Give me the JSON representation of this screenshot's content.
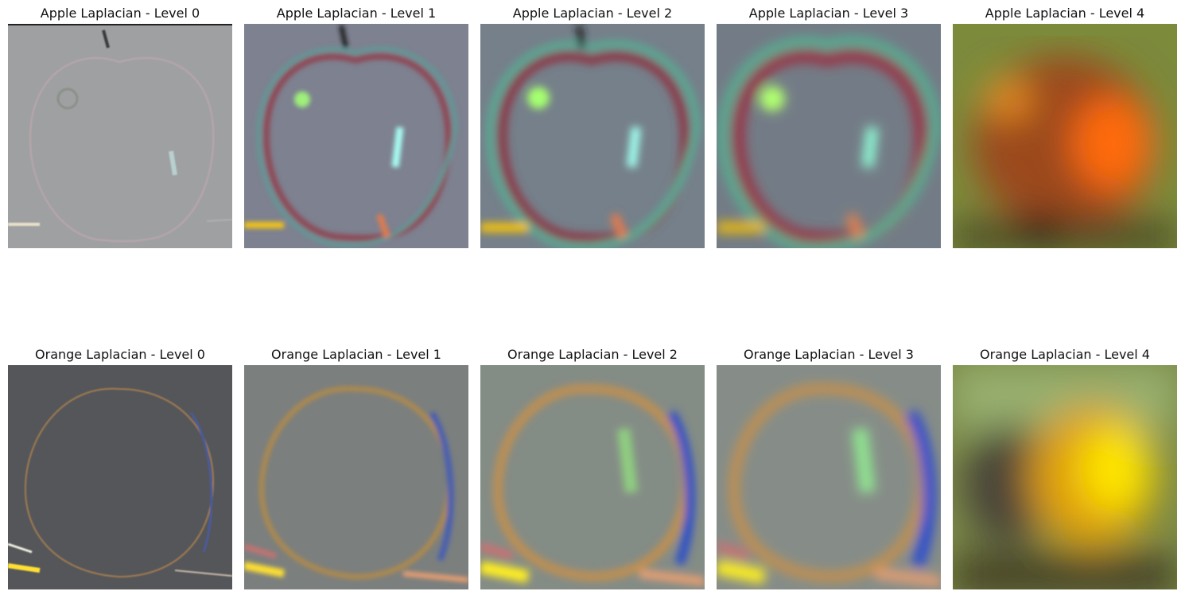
{
  "figure": {
    "panels": [
      {
        "id": "apple-0",
        "title": "Apple Laplacian - Level 0"
      },
      {
        "id": "apple-1",
        "title": "Apple Laplacian - Level 1"
      },
      {
        "id": "apple-2",
        "title": "Apple Laplacian - Level 2"
      },
      {
        "id": "apple-3",
        "title": "Apple Laplacian - Level 3"
      },
      {
        "id": "apple-4",
        "title": "Apple Laplacian - Level 4"
      },
      {
        "id": "orange-0",
        "title": "Orange Laplacian - Level 0"
      },
      {
        "id": "orange-1",
        "title": "Orange Laplacian - Level 1"
      },
      {
        "id": "orange-2",
        "title": "Orange Laplacian - Level 2"
      },
      {
        "id": "orange-3",
        "title": "Orange Laplacian - Level 3"
      },
      {
        "id": "orange-4",
        "title": "Orange Laplacian - Level 4"
      }
    ]
  }
}
